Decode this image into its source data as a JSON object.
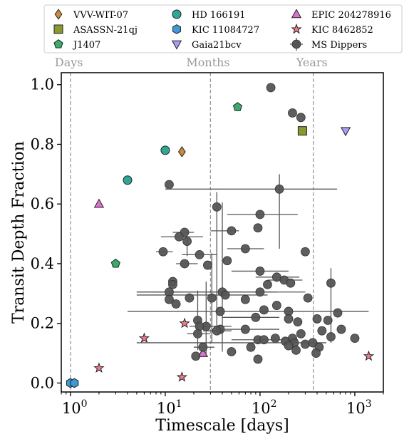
{
  "chart_data": {
    "type": "scatter",
    "title": "",
    "xlabel": "Timescale [days]",
    "ylabel": "Transit Depth Fraction",
    "xscale": "log",
    "xlim": [
      0.8,
      2000
    ],
    "ylim": [
      -0.03,
      1.04
    ],
    "xticks": [
      {
        "value": 1,
        "base": "10",
        "exp": "0"
      },
      {
        "value": 10,
        "base": "10",
        "exp": "1"
      },
      {
        "value": 100,
        "base": "10",
        "exp": "2"
      },
      {
        "value": 1000,
        "base": "10",
        "exp": "3"
      }
    ],
    "yticks": [
      {
        "value": 0.0,
        "label": "0.0"
      },
      {
        "value": 0.2,
        "label": "0.2"
      },
      {
        "value": 0.4,
        "label": "0.4"
      },
      {
        "value": 0.6,
        "label": "0.6"
      },
      {
        "value": 0.8,
        "label": "0.8"
      },
      {
        "value": 1.0,
        "label": "1.0"
      }
    ],
    "grid": false,
    "legend_position": "top",
    "reference_lines": [
      {
        "x": 1,
        "label": "Days",
        "color": "#999999"
      },
      {
        "x": 30,
        "label": "Months",
        "color": "#999999"
      },
      {
        "x": 365,
        "label": "Years",
        "color": "#999999"
      }
    ],
    "series": [
      {
        "name": "VVV-WIT-07",
        "marker": "diamond",
        "color": "#cc8a3d",
        "points": [
          {
            "x": 15,
            "y": 0.775
          }
        ]
      },
      {
        "name": "ASASSN-21qj",
        "marker": "square",
        "color": "#8a9a2e",
        "points": [
          {
            "x": 280,
            "y": 0.845
          }
        ]
      },
      {
        "name": "J1407",
        "marker": "pentagon",
        "color": "#3aab6a",
        "points": [
          {
            "x": 3,
            "y": 0.4
          },
          {
            "x": 58,
            "y": 0.925
          }
        ]
      },
      {
        "name": "HD 166191",
        "marker": "circle",
        "color": "#2ea894",
        "points": [
          {
            "x": 4,
            "y": 0.68
          },
          {
            "x": 10,
            "y": 0.78
          }
        ]
      },
      {
        "name": "KIC 11084727",
        "marker": "hexagon",
        "color": "#3c9ad6",
        "points": [
          {
            "x": 1.0,
            "y": 0.0
          },
          {
            "x": 1.1,
            "y": 0.0
          }
        ]
      },
      {
        "name": "Gaia21bcv",
        "marker": "triangle-down",
        "color": "#a89cf0",
        "points": [
          {
            "x": 800,
            "y": 0.845
          }
        ]
      },
      {
        "name": "EPIC 204278916",
        "marker": "triangle-up",
        "color": "#e070d0",
        "points": [
          {
            "x": 2,
            "y": 0.6
          },
          {
            "x": 25,
            "y": 0.1
          }
        ]
      },
      {
        "name": "KIC 8462852",
        "marker": "star",
        "color": "#ee7a8a",
        "points": [
          {
            "x": 2,
            "y": 0.05
          },
          {
            "x": 6,
            "y": 0.15
          },
          {
            "x": 16,
            "y": 0.2
          },
          {
            "x": 15,
            "y": 0.02
          },
          {
            "x": 1400,
            "y": 0.09
          }
        ]
      },
      {
        "name": "MS Dippers",
        "marker": "circle-errorbar",
        "color": "#555555",
        "points": [
          {
            "x": 130,
            "y": 0.99
          },
          {
            "x": 220,
            "y": 0.905
          },
          {
            "x": 270,
            "y": 0.89
          },
          {
            "x": 11,
            "y": 0.665
          },
          {
            "x": 160,
            "y": 0.65,
            "xerr": [
              10,
              650
            ],
            "yerr": [
              0.2,
              0.05
            ]
          },
          {
            "x": 35,
            "y": 0.59,
            "yerr": [
              0.4,
              0.05
            ]
          },
          {
            "x": 100,
            "y": 0.565,
            "xerr": [
              45,
              250
            ]
          },
          {
            "x": 50,
            "y": 0.51,
            "xerr": [
              30,
              60
            ]
          },
          {
            "x": 95,
            "y": 0.52
          },
          {
            "x": 16,
            "y": 0.505,
            "xerr": [
              12,
              20
            ]
          },
          {
            "x": 14,
            "y": 0.49,
            "xerr": [
              9,
              25
            ]
          },
          {
            "x": 17,
            "y": 0.475,
            "yerr": [
              0.05,
              0.02
            ]
          },
          {
            "x": 70,
            "y": 0.45,
            "xerr": [
              45,
              110
            ]
          },
          {
            "x": 9.5,
            "y": 0.44,
            "xerr": [
              8,
              12
            ]
          },
          {
            "x": 300,
            "y": 0.44
          },
          {
            "x": 23,
            "y": 0.43,
            "xerr": [
              15,
              35
            ]
          },
          {
            "x": 45,
            "y": 0.41
          },
          {
            "x": 16,
            "y": 0.4,
            "xerr": [
              13,
              22
            ]
          },
          {
            "x": 28,
            "y": 0.395
          },
          {
            "x": 100,
            "y": 0.375,
            "xerr": [
              50,
              200
            ]
          },
          {
            "x": 150,
            "y": 0.355,
            "xerr": [
              90,
              260
            ]
          },
          {
            "x": 180,
            "y": 0.345,
            "xerr": [
              120,
              280
            ]
          },
          {
            "x": 210,
            "y": 0.335
          },
          {
            "x": 12,
            "y": 0.34
          },
          {
            "x": 12,
            "y": 0.33
          },
          {
            "x": 120,
            "y": 0.33
          },
          {
            "x": 560,
            "y": 0.335,
            "yerr": [
              0.2,
              0.05
            ]
          },
          {
            "x": 100,
            "y": 0.305,
            "xerr": [
              5,
              300
            ]
          },
          {
            "x": 40,
            "y": 0.305,
            "xerr": [
              5,
              150
            ],
            "yerr": [
              0.2,
              0.3
            ]
          },
          {
            "x": 43,
            "y": 0.295,
            "xerr": [
              5,
              120
            ]
          },
          {
            "x": 11,
            "y": 0.305,
            "xerr": [
              7,
              14
            ]
          },
          {
            "x": 31,
            "y": 0.285,
            "yerr": [
              0.15,
              0.15
            ]
          },
          {
            "x": 18,
            "y": 0.285
          },
          {
            "x": 70,
            "y": 0.28
          },
          {
            "x": 320,
            "y": 0.285
          },
          {
            "x": 11,
            "y": 0.28
          },
          {
            "x": 13,
            "y": 0.265
          },
          {
            "x": 150,
            "y": 0.26
          },
          {
            "x": 38,
            "y": 0.24,
            "xerr": [
              4,
              1400
            ]
          },
          {
            "x": 110,
            "y": 0.245
          },
          {
            "x": 200,
            "y": 0.24
          },
          {
            "x": 660,
            "y": 0.235
          },
          {
            "x": 90,
            "y": 0.22,
            "xerr": [
              40,
              160
            ]
          },
          {
            "x": 22,
            "y": 0.21,
            "yerr": [
              0.1,
              0.1
            ]
          },
          {
            "x": 200,
            "y": 0.215
          },
          {
            "x": 250,
            "y": 0.205
          },
          {
            "x": 400,
            "y": 0.215
          },
          {
            "x": 520,
            "y": 0.21
          },
          {
            "x": 27,
            "y": 0.19,
            "xerr": [
              22,
              50
            ],
            "yerr": [
              0.1,
              0.15
            ]
          },
          {
            "x": 38,
            "y": 0.18
          },
          {
            "x": 23,
            "y": 0.19,
            "xerr": [
              18,
              35
            ]
          },
          {
            "x": 35,
            "y": 0.175,
            "xerr": [
              25,
              50
            ]
          },
          {
            "x": 70,
            "y": 0.18,
            "xerr": [
              40,
              160
            ]
          },
          {
            "x": 450,
            "y": 0.175
          },
          {
            "x": 720,
            "y": 0.18
          },
          {
            "x": 22,
            "y": 0.165,
            "xerr": [
              17,
              30
            ]
          },
          {
            "x": 270,
            "y": 0.165
          },
          {
            "x": 560,
            "y": 0.155
          },
          {
            "x": 95,
            "y": 0.145,
            "xerr": [
              50,
              250
            ]
          },
          {
            "x": 110,
            "y": 0.145
          },
          {
            "x": 145,
            "y": 0.15
          },
          {
            "x": 185,
            "y": 0.14
          },
          {
            "x": 220,
            "y": 0.15
          },
          {
            "x": 1000,
            "y": 0.15
          },
          {
            "x": 230,
            "y": 0.135,
            "xerr": [
              5,
              500
            ]
          },
          {
            "x": 300,
            "y": 0.13
          },
          {
            "x": 360,
            "y": 0.135
          },
          {
            "x": 80,
            "y": 0.12
          },
          {
            "x": 200,
            "y": 0.125
          },
          {
            "x": 420,
            "y": 0.12
          },
          {
            "x": 25,
            "y": 0.12,
            "xerr": [
              20,
              33
            ]
          },
          {
            "x": 50,
            "y": 0.105
          },
          {
            "x": 240,
            "y": 0.11
          },
          {
            "x": 390,
            "y": 0.1
          },
          {
            "x": 21,
            "y": 0.09
          },
          {
            "x": 95,
            "y": 0.08
          }
        ]
      }
    ]
  }
}
